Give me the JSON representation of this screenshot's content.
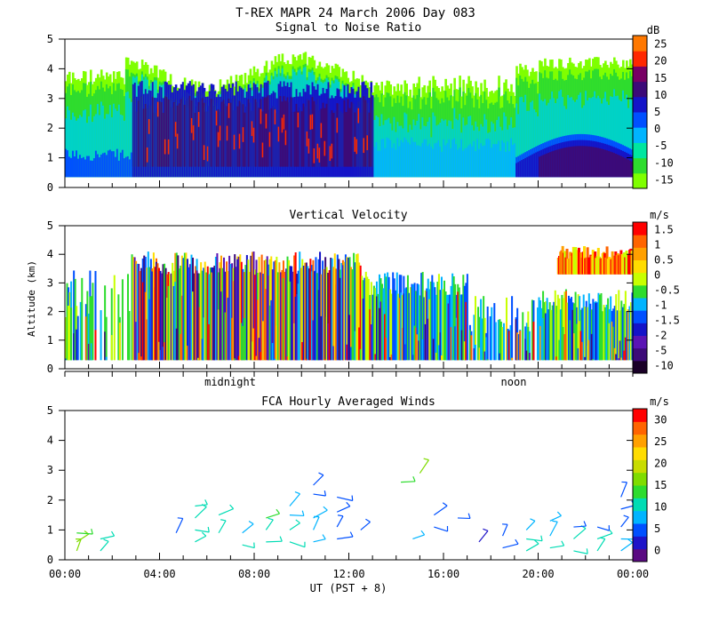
{
  "header": {
    "title": "T-REX  MAPR 24 March 2006 Day 083",
    "subtitle": "Signal to Noise Ratio"
  },
  "colors": {
    "scale": [
      "#7fff00",
      "#2edc2e",
      "#00e6a0",
      "#00b4ff",
      "#0050ff",
      "#1414c8",
      "#3c0a78",
      "#780064",
      "#ff2800",
      "#ff7800",
      "#ffc800"
    ],
    "wind_scale": [
      "#5a0a82",
      "#1e14c8",
      "#0050ff",
      "#00b4ff",
      "#00dcb4",
      "#2edc2e",
      "#7fdc00",
      "#c8dc00",
      "#ffdc00",
      "#ffa000",
      "#ff6400",
      "#ff0000"
    ]
  },
  "chart_data": [
    {
      "type": "heatmap",
      "title": "Signal to Noise Ratio",
      "ylabel": "",
      "ylim": [
        0,
        5
      ],
      "yticks": [
        "0",
        "1",
        "2",
        "3",
        "4",
        "5"
      ],
      "colorbar": {
        "units": "dB",
        "labels": [
          "25",
          "20",
          "15",
          "10",
          "5",
          "0",
          "-5",
          "-10",
          "-15"
        ]
      },
      "features": [
        {
          "x_start_hour": 0,
          "x_end_hour": 24,
          "band_km": [
            0.3,
            4.0
          ],
          "value_db": -12
        },
        {
          "x_start_hour": 2.8,
          "x_end_hour": 12.5,
          "band_km": [
            0.3,
            3.5
          ],
          "value_db": 6
        },
        {
          "x_start_hour": 19,
          "x_end_hour": 24,
          "band_km": [
            0.3,
            1.5
          ],
          "value_db": 8
        }
      ]
    },
    {
      "type": "heatmap",
      "title": "Vertical Velocity",
      "ylabel": "Altitude (km)",
      "ylim": [
        0,
        5
      ],
      "yticks": [
        "0",
        "1",
        "2",
        "3",
        "4",
        "5"
      ],
      "xmarkers": [
        "midnight",
        "noon"
      ],
      "colorbar": {
        "units": "m/s",
        "labels": [
          "1.5",
          "1",
          "0.5",
          "0",
          "-0.5",
          "-1",
          "-1.5",
          "-2",
          "-5",
          "-10"
        ]
      }
    },
    {
      "type": "scatter",
      "title": "FCA Hourly Averaged Winds",
      "xlabel": "UT  (PST + 8)",
      "ylim": [
        0,
        5
      ],
      "yticks": [
        "0",
        "1",
        "2",
        "3",
        "4",
        "5"
      ],
      "xticks": [
        "00:00",
        "04:00",
        "08:00",
        "12:00",
        "16:00",
        "20:00",
        "00:00"
      ],
      "xlim_hours": [
        0,
        24
      ],
      "colorbar": {
        "units": "m/s",
        "labels": [
          "30",
          "25",
          "20",
          "15",
          "10",
          "5",
          "0"
        ]
      },
      "barbs": [
        {
          "hour": 0.5,
          "alt": 0.3,
          "speed": 15
        },
        {
          "hour": 0.5,
          "alt": 0.6,
          "speed": 15
        },
        {
          "hour": 0.5,
          "alt": 0.9,
          "speed": 14
        },
        {
          "hour": 1.5,
          "alt": 0.3,
          "speed": 10
        },
        {
          "hour": 1.5,
          "alt": 0.7,
          "speed": 12
        },
        {
          "hour": 4.7,
          "alt": 0.9,
          "speed": 6
        },
        {
          "hour": 5.5,
          "alt": 0.6,
          "speed": 10
        },
        {
          "hour": 5.5,
          "alt": 1.0,
          "speed": 10
        },
        {
          "hour": 5.5,
          "alt": 1.4,
          "speed": 12
        },
        {
          "hour": 5.5,
          "alt": 1.8,
          "speed": 11
        },
        {
          "hour": 6.5,
          "alt": 0.9,
          "speed": 10
        },
        {
          "hour": 6.5,
          "alt": 1.5,
          "speed": 11
        },
        {
          "hour": 7.5,
          "alt": 0.5,
          "speed": 10
        },
        {
          "hour": 7.5,
          "alt": 0.9,
          "speed": 9
        },
        {
          "hour": 8.5,
          "alt": 0.6,
          "speed": 11
        },
        {
          "hour": 8.5,
          "alt": 1.0,
          "speed": 12
        },
        {
          "hour": 8.5,
          "alt": 1.4,
          "speed": 14
        },
        {
          "hour": 9.5,
          "alt": 0.6,
          "speed": 11
        },
        {
          "hour": 9.5,
          "alt": 1.0,
          "speed": 10
        },
        {
          "hour": 9.5,
          "alt": 1.5,
          "speed": 9
        },
        {
          "hour": 9.5,
          "alt": 1.8,
          "speed": 9
        },
        {
          "hour": 10.5,
          "alt": 0.6,
          "speed": 9
        },
        {
          "hour": 10.5,
          "alt": 1.0,
          "speed": 8
        },
        {
          "hour": 10.5,
          "alt": 1.4,
          "speed": 9
        },
        {
          "hour": 10.5,
          "alt": 2.2,
          "speed": 6
        },
        {
          "hour": 10.5,
          "alt": 2.5,
          "speed": 6
        },
        {
          "hour": 11.5,
          "alt": 0.7,
          "speed": 7
        },
        {
          "hour": 11.5,
          "alt": 1.1,
          "speed": 6
        },
        {
          "hour": 11.5,
          "alt": 1.6,
          "speed": 6
        },
        {
          "hour": 11.5,
          "alt": 2.1,
          "speed": 5
        },
        {
          "hour": 12.5,
          "alt": 1.0,
          "speed": 5
        },
        {
          "hour": 14.2,
          "alt": 2.6,
          "speed": 14
        },
        {
          "hour": 15.0,
          "alt": 2.9,
          "speed": 16
        },
        {
          "hour": 14.7,
          "alt": 0.7,
          "speed": 8
        },
        {
          "hour": 15.6,
          "alt": 1.1,
          "speed": 7
        },
        {
          "hour": 15.6,
          "alt": 1.5,
          "speed": 6
        },
        {
          "hour": 16.6,
          "alt": 1.4,
          "speed": 6
        },
        {
          "hour": 17.5,
          "alt": 0.6,
          "speed": 4
        },
        {
          "hour": 18.5,
          "alt": 0.4,
          "speed": 6
        },
        {
          "hour": 18.5,
          "alt": 0.8,
          "speed": 5
        },
        {
          "hour": 19.5,
          "alt": 0.3,
          "speed": 10
        },
        {
          "hour": 19.5,
          "alt": 0.7,
          "speed": 10
        },
        {
          "hour": 19.5,
          "alt": 1.0,
          "speed": 9
        },
        {
          "hour": 20.5,
          "alt": 0.4,
          "speed": 10
        },
        {
          "hour": 20.5,
          "alt": 0.8,
          "speed": 9
        },
        {
          "hour": 20.5,
          "alt": 1.3,
          "speed": 8
        },
        {
          "hour": 21.5,
          "alt": 0.3,
          "speed": 11
        },
        {
          "hour": 21.5,
          "alt": 0.7,
          "speed": 10
        },
        {
          "hour": 21.5,
          "alt": 1.1,
          "speed": 6
        },
        {
          "hour": 22.5,
          "alt": 0.3,
          "speed": 12
        },
        {
          "hour": 22.5,
          "alt": 0.7,
          "speed": 11
        },
        {
          "hour": 22.5,
          "alt": 1.1,
          "speed": 6
        },
        {
          "hour": 23.5,
          "alt": 0.3,
          "speed": 9
        },
        {
          "hour": 23.5,
          "alt": 0.7,
          "speed": 8
        },
        {
          "hour": 23.5,
          "alt": 1.1,
          "speed": 6
        },
        {
          "hour": 23.5,
          "alt": 1.7,
          "speed": 5
        },
        {
          "hour": 23.5,
          "alt": 2.1,
          "speed": 5
        }
      ]
    }
  ]
}
